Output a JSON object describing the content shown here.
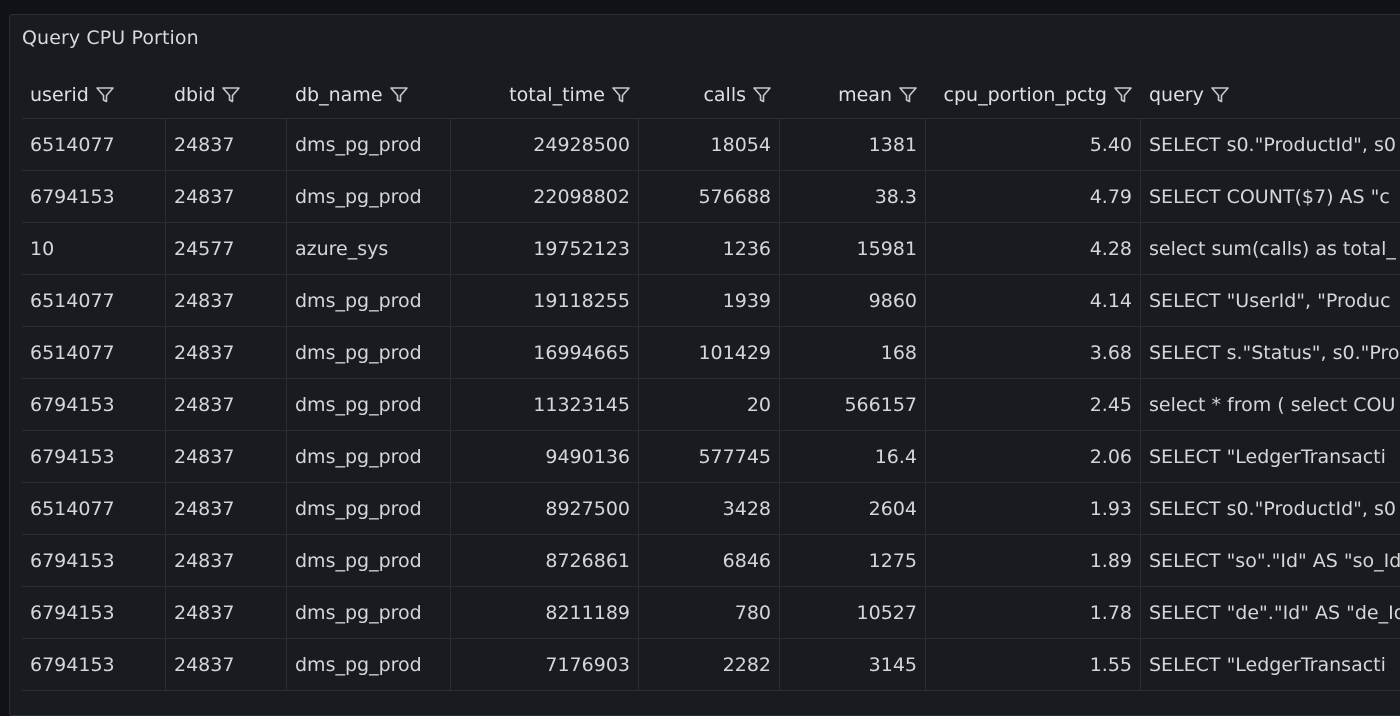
{
  "panel": {
    "title": "Query CPU Portion"
  },
  "columns": [
    "userid",
    "dbid",
    "db_name",
    "total_time",
    "calls",
    "mean",
    "cpu_portion_pctg",
    "query"
  ],
  "filter_icon": "filter-icon",
  "rows": [
    [
      "6514077",
      "24837",
      "dms_pg_prod",
      "24928500",
      "18054",
      "1381",
      "5.40",
      "SELECT s0.\"ProductId\", s0"
    ],
    [
      "6794153",
      "24837",
      "dms_pg_prod",
      "22098802",
      "576688",
      "38.3",
      "4.79",
      "SELECT COUNT($7) AS \"c"
    ],
    [
      "10",
      "24577",
      "azure_sys",
      "19752123",
      "1236",
      "15981",
      "4.28",
      "select sum(calls) as total_"
    ],
    [
      "6514077",
      "24837",
      "dms_pg_prod",
      "19118255",
      "1939",
      "9860",
      "4.14",
      "SELECT \"UserId\", \"Produc"
    ],
    [
      "6514077",
      "24837",
      "dms_pg_prod",
      "16994665",
      "101429",
      "168",
      "3.68",
      "SELECT s.\"Status\", s0.\"Pro"
    ],
    [
      "6794153",
      "24837",
      "dms_pg_prod",
      "11323145",
      "20",
      "566157",
      "2.45",
      "select * from ( select COU"
    ],
    [
      "6794153",
      "24837",
      "dms_pg_prod",
      "9490136",
      "577745",
      "16.4",
      "2.06",
      "SELECT \"LedgerTransacti"
    ],
    [
      "6514077",
      "24837",
      "dms_pg_prod",
      "8927500",
      "3428",
      "2604",
      "1.93",
      "SELECT s0.\"ProductId\", s0"
    ],
    [
      "6794153",
      "24837",
      "dms_pg_prod",
      "8726861",
      "6846",
      "1275",
      "1.89",
      "SELECT \"so\".\"Id\" AS \"so_Id"
    ],
    [
      "6794153",
      "24837",
      "dms_pg_prod",
      "8211189",
      "780",
      "10527",
      "1.78",
      "SELECT \"de\".\"Id\" AS \"de_Id"
    ],
    [
      "6794153",
      "24837",
      "dms_pg_prod",
      "7176903",
      "2282",
      "3145",
      "1.55",
      "SELECT \"LedgerTransacti"
    ]
  ]
}
